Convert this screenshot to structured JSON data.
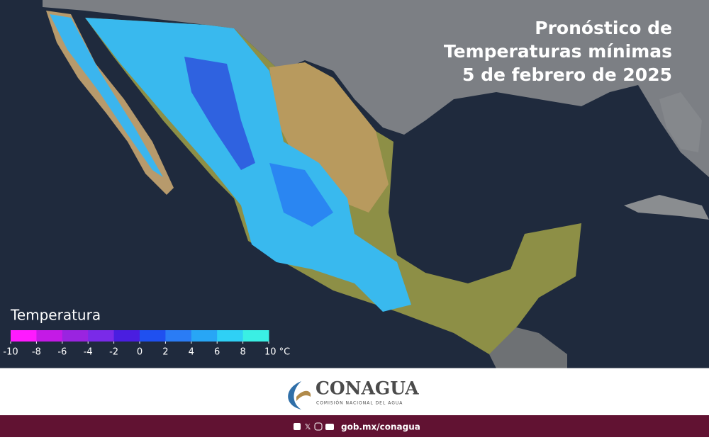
{
  "header": {
    "title_lines": [
      "Pronóstico de",
      "Temperaturas mínimas",
      "5 de febrero de 2025"
    ]
  },
  "legend": {
    "title": "Temperatura",
    "colors": [
      "#ff1aff",
      "#c41ae6",
      "#9a24e0",
      "#7a2ae8",
      "#4a1ee0",
      "#1f50f0",
      "#2a7cf5",
      "#28a6f5",
      "#2fd0f5",
      "#3aefe4"
    ],
    "ticks": [
      -10,
      -8,
      -6,
      -4,
      -2,
      0,
      2,
      4,
      6,
      8,
      {
        "value": 10,
        "label": "10 °C"
      }
    ]
  },
  "logo": {
    "name": "CONAGUA",
    "subtitle": "COMISIÓN NACIONAL DEL AGUA"
  },
  "footer": {
    "url": "gob.mx/conagua"
  }
}
